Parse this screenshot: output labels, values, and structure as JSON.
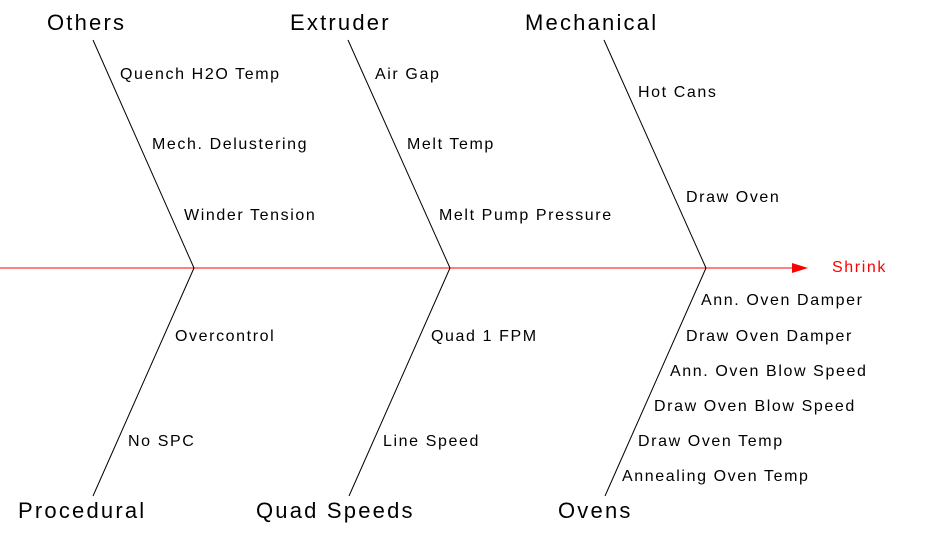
{
  "effect": "Shrink",
  "colors": {
    "spine": "#ff0000",
    "effect_text": "#ff0000",
    "bones": "#000000",
    "text": "#000000",
    "background": "#ffffff"
  },
  "categories": {
    "others": {
      "label": "Others",
      "causes": [
        "Quench H2O Temp",
        "Mech. Delustering",
        "Winder Tension"
      ]
    },
    "extruder": {
      "label": "Extruder",
      "causes": [
        "Air Gap",
        "Melt Temp",
        "Melt Pump Pressure"
      ]
    },
    "mechanical": {
      "label": "Mechanical",
      "causes": [
        "Hot Cans",
        "Draw Oven"
      ]
    },
    "procedural": {
      "label": "Procedural",
      "causes": [
        "Overcontrol",
        "No SPC"
      ]
    },
    "quad_speeds": {
      "label": "Quad Speeds",
      "causes": [
        "Quad 1 FPM",
        "Line Speed"
      ]
    },
    "ovens": {
      "label": "Ovens",
      "causes": [
        "Ann. Oven Damper",
        "Draw Oven Damper",
        "Ann. Oven Blow Speed",
        "Draw Oven Blow Speed",
        "Draw Oven Temp",
        "Annealing Oven Temp"
      ]
    }
  }
}
